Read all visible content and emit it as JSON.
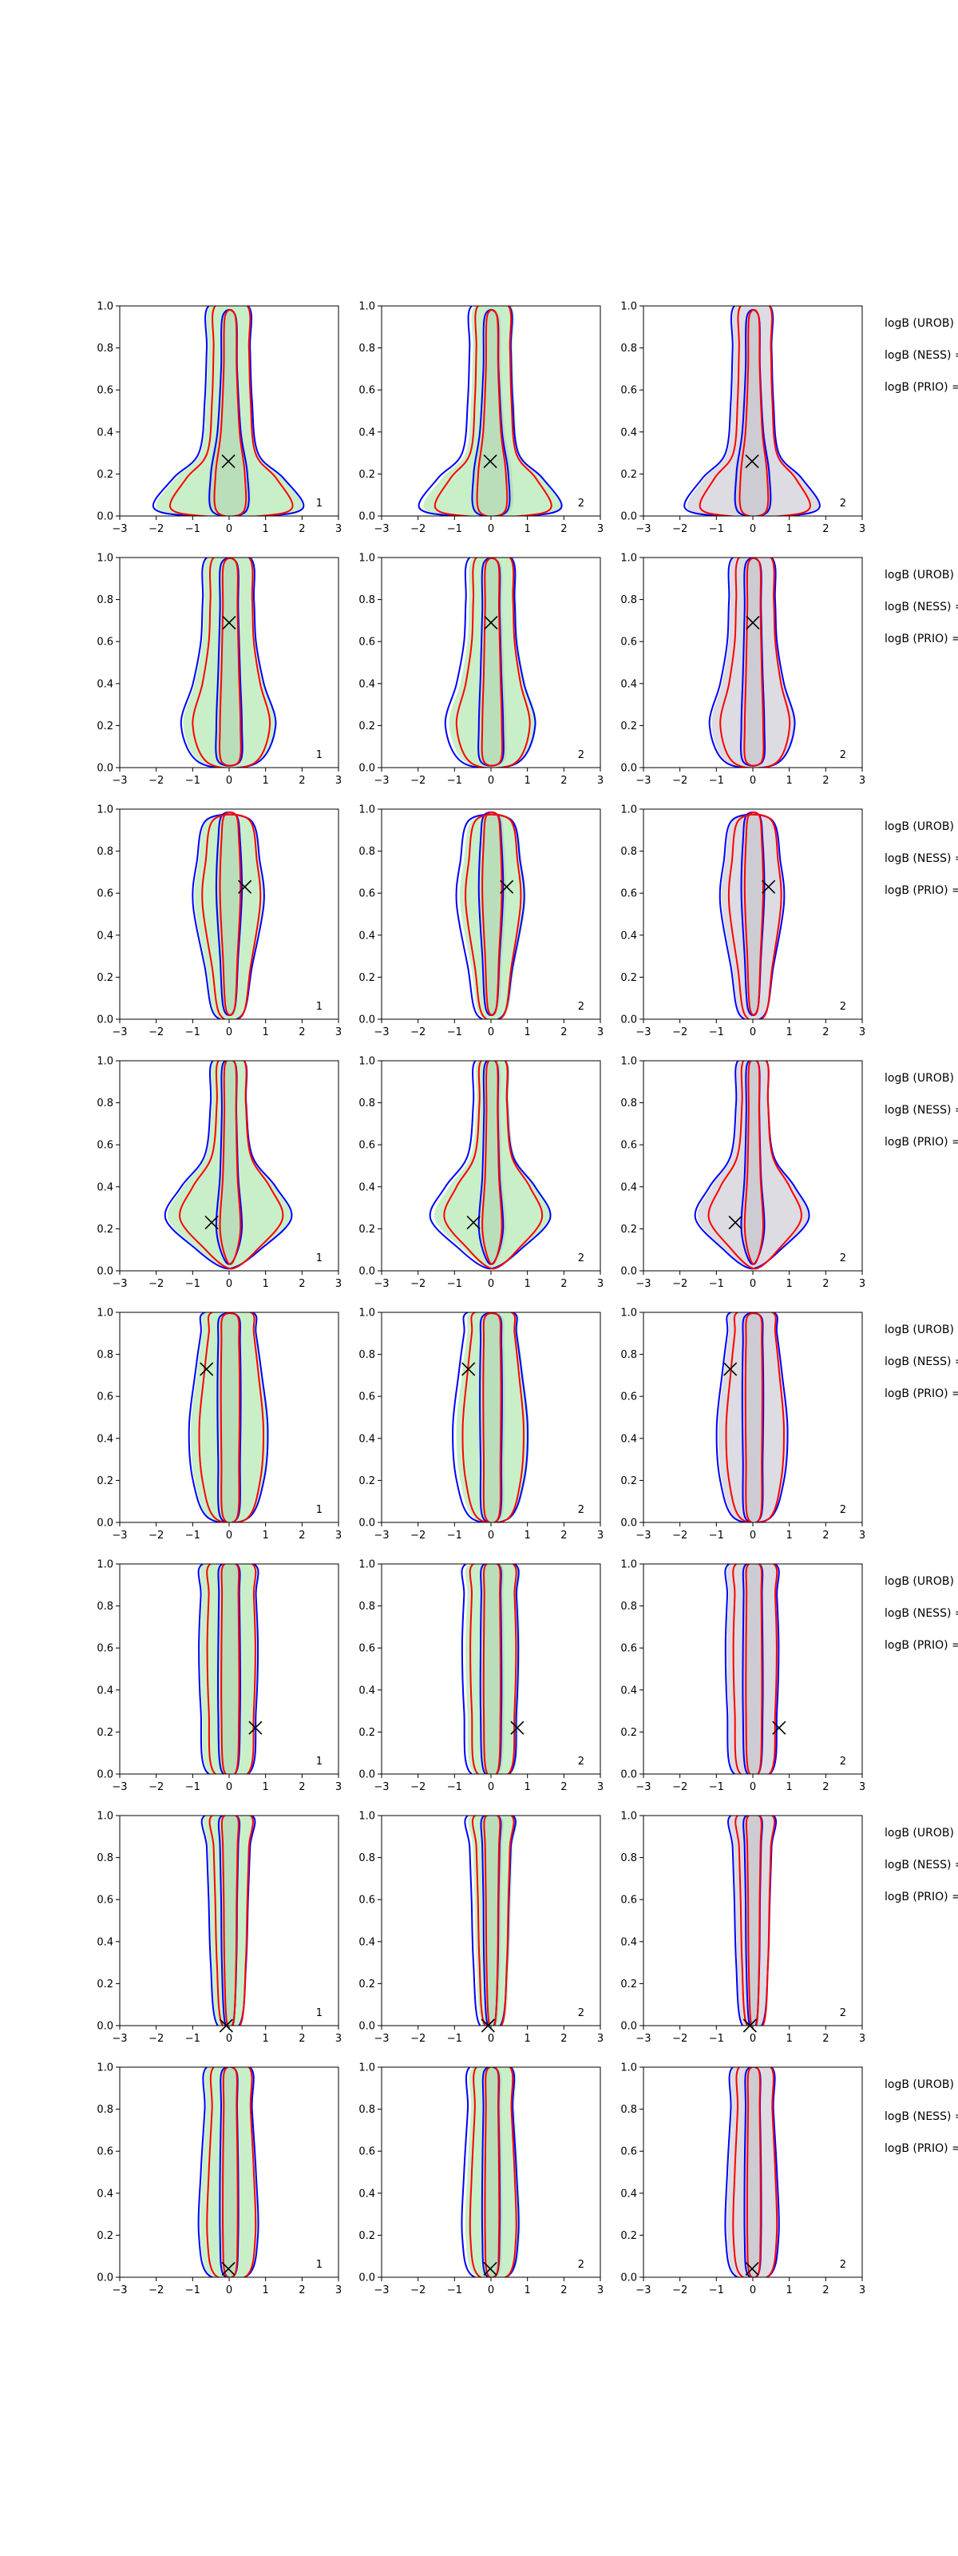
{
  "chart_data": {
    "type": "contour",
    "grid": "3x8",
    "xlim": [
      -3,
      3
    ],
    "ylim": [
      0,
      1
    ],
    "x_ticks": [
      "−3",
      "−2",
      "−1",
      "0",
      "1",
      "2",
      "3"
    ],
    "y_ticks": [
      "0.0",
      "0.2",
      "0.4",
      "0.6",
      "0.8",
      "1.0"
    ],
    "colors": {
      "blue": "#0000ff",
      "red": "#ff0000",
      "green_fill": "#c9efc9",
      "gray_fill": "#dcdce2"
    },
    "column_tags": [
      "1",
      "2",
      "2"
    ],
    "row_notes": [
      "logB (UROB) =",
      "logB (NESS) =",
      "logB (PRIO) ="
    ],
    "rows": [
      {
        "marker": [
          -0.02,
          0.26
        ]
      },
      {
        "marker": [
          0.0,
          0.69
        ]
      },
      {
        "marker": [
          0.43,
          0.63
        ]
      },
      {
        "marker": [
          -0.48,
          0.23
        ]
      },
      {
        "marker": [
          -0.62,
          0.73
        ]
      },
      {
        "marker": [
          0.72,
          0.22
        ]
      },
      {
        "marker": [
          -0.08,
          0.0
        ]
      },
      {
        "marker": [
          -0.02,
          0.04
        ]
      }
    ]
  }
}
